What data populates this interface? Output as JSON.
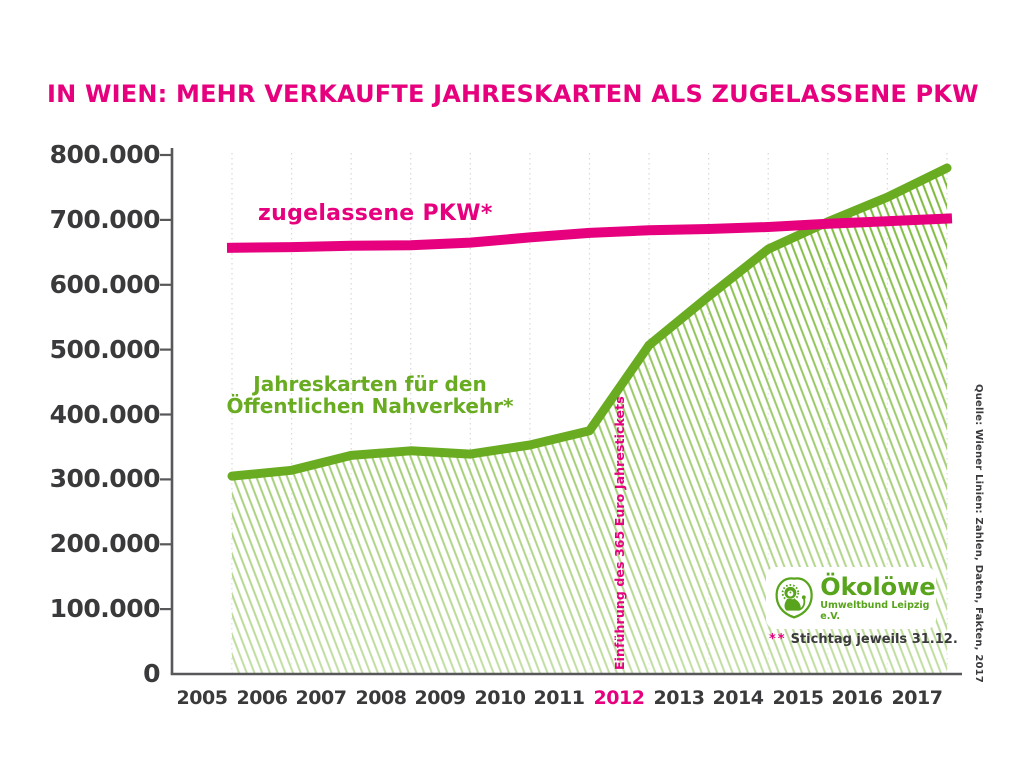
{
  "title": "IN WIEN: MEHR VERKAUFTE JAHRESKARTEN ALS ZUGELASSENE PKW",
  "source": "Quelle: Wiener Linien: Zahlen, Daten, Fakten, 2017",
  "footnote": {
    "marks": "**",
    "text": "Stichtag jeweils 31.12."
  },
  "logo": {
    "name": "Ökolöwe",
    "subtitle": "Umweltbund Leipzig e.V."
  },
  "colors": {
    "pink": "#e6007e",
    "green": "#69ac21",
    "hatch_green": "#79b733",
    "logo_green": "#58a41c",
    "axis": "#58585a",
    "label_dark": "#3a3a3c",
    "gridline": "#d8d8d8"
  },
  "chart_data": {
    "type": "line",
    "title": "IN WIEN: MEHR VERKAUFTE JAHRESKARTEN ALS ZUGELASSENE PKW",
    "categories": [
      "2005",
      "2006",
      "2007",
      "2008",
      "2009",
      "2010",
      "2011",
      "2012",
      "2013",
      "2014",
      "2015",
      "2016",
      "2017"
    ],
    "highlighted_category": "2012",
    "series": [
      {
        "name": "zugelassene PKW*",
        "color": "#e6007e",
        "values": [
          657000,
          658000,
          660000,
          661000,
          665000,
          673000,
          680000,
          684000,
          686000,
          689000,
          694000,
          698000,
          702000
        ]
      },
      {
        "name": "Jahreskarten für den Öffentlichen Nahverkehr*",
        "label_lines": [
          "Jahreskarten für den",
          "Öffentlichen Nahverkehr*"
        ],
        "color": "#69ac21",
        "area_fill": "diagonal-hatch-fading-down",
        "values": [
          305000,
          314000,
          337000,
          344000,
          339000,
          353000,
          375000,
          507000,
          582000,
          655000,
          697000,
          735000,
          780000
        ]
      }
    ],
    "ylim": [
      0,
      800000
    ],
    "yticks": [
      {
        "value": 800000,
        "label": "800.000"
      },
      {
        "value": 700000,
        "label": "700.000"
      },
      {
        "value": 600000,
        "label": "600.000"
      },
      {
        "value": 500000,
        "label": "500.000"
      },
      {
        "value": 400000,
        "label": "400.000"
      },
      {
        "value": 300000,
        "label": "300.000"
      },
      {
        "value": 200000,
        "label": "200.000"
      },
      {
        "value": 100000,
        "label": "100.000"
      },
      {
        "value": 0,
        "label": "0"
      }
    ],
    "grid": "vertical-dashed",
    "legend_position": "inline-labels",
    "annotation": {
      "text": "Einführung des 365 Euro Jahrestickets",
      "at_category": "2012"
    }
  }
}
